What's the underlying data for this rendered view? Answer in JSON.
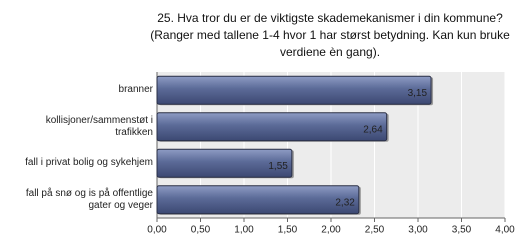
{
  "chart_data": {
    "type": "hbar",
    "title": "25. Hva tror du er de viktigste skademekanismer i din kommune? (Ranger med tallene 1-4 hvor 1 har størst betydning. Kan kun bruke verdiene èn gang).",
    "categories": [
      "branner",
      "kollisjoner/sammenstøt i trafikken",
      "fall i privat bolig og sykehjem",
      "fall på snø og is på offentlige gater og veger"
    ],
    "values": [
      3.15,
      2.64,
      1.55,
      2.32
    ],
    "value_labels": [
      "3,15",
      "2,64",
      "1,55",
      "2,32"
    ],
    "color": "#5b6a97",
    "xlim": [
      0,
      4
    ],
    "xticks": [
      {
        "value": 0,
        "label": "0,00"
      },
      {
        "value": 0.5,
        "label": "0,50"
      },
      {
        "value": 1,
        "label": "1,00"
      },
      {
        "value": 1.5,
        "label": "1,50"
      },
      {
        "value": 2,
        "label": "2,00"
      },
      {
        "value": 2.5,
        "label": "2,50"
      },
      {
        "value": 3,
        "label": "3,00"
      },
      {
        "value": 3.5,
        "label": "3,50"
      },
      {
        "value": 4,
        "label": "4,00"
      }
    ],
    "grid": true
  }
}
